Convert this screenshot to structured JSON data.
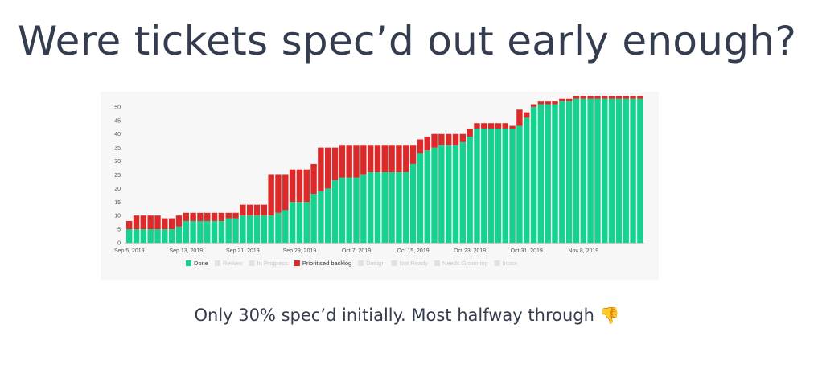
{
  "slide": {
    "title": "Were tickets spec’d out early enough?",
    "caption": "Only 30% spec’d initially. Most halfway through",
    "caption_emoji": "👎"
  },
  "colors": {
    "done": "#17d18e",
    "prioritised_backlog": "#dc2a2a",
    "faded_legend": "#c8c8c8",
    "axis_text": "#555555",
    "panel": "#f7f7f7"
  },
  "chart_data": {
    "type": "bar",
    "stacked": true,
    "title": "",
    "xlabel": "",
    "ylabel": "",
    "ylim": [
      0,
      55
    ],
    "y_ticks": [
      0,
      5,
      10,
      15,
      20,
      25,
      30,
      35,
      40,
      45,
      50
    ],
    "x_tick_labels": [
      {
        "index": 0,
        "label": "Sep 5, 2019"
      },
      {
        "index": 8,
        "label": "Sep 13, 2019"
      },
      {
        "index": 16,
        "label": "Sep 21, 2019"
      },
      {
        "index": 24,
        "label": "Sep 29, 2019"
      },
      {
        "index": 32,
        "label": "Oct 7, 2019"
      },
      {
        "index": 40,
        "label": "Oct 15, 2019"
      },
      {
        "index": 48,
        "label": "Oct 23, 2019"
      },
      {
        "index": 56,
        "label": "Oct 31, 2019"
      },
      {
        "index": 64,
        "label": "Nov 8, 2019"
      }
    ],
    "grid": false,
    "legend_position": "bottom",
    "legend": [
      {
        "name": "Done",
        "active": true
      },
      {
        "name": "Review",
        "active": false
      },
      {
        "name": "In Progress",
        "active": false
      },
      {
        "name": "Prioritised backlog",
        "active": true
      },
      {
        "name": "Design",
        "active": false
      },
      {
        "name": "Not Ready",
        "active": false
      },
      {
        "name": "Needs Grooming",
        "active": false
      },
      {
        "name": "Inbox",
        "active": false
      }
    ],
    "series": [
      {
        "name": "Done",
        "values": [
          5,
          5,
          5,
          5,
          5,
          5,
          5,
          6,
          8,
          8,
          8,
          8,
          8,
          8,
          9,
          9,
          10,
          10,
          10,
          10,
          10,
          11,
          12,
          15,
          15,
          15,
          18,
          19,
          20,
          23,
          24,
          24,
          24,
          25,
          26,
          26,
          26,
          26,
          26,
          26,
          29,
          33,
          34,
          35,
          36,
          36,
          36,
          37,
          39,
          42,
          42,
          42,
          42,
          42,
          42,
          43,
          46,
          50,
          51,
          51,
          51,
          52,
          52,
          53,
          53,
          53,
          53,
          53,
          53,
          53,
          53,
          53,
          53
        ]
      },
      {
        "name": "Prioritised backlog",
        "values": [
          3,
          5,
          5,
          5,
          5,
          4,
          4,
          4,
          3,
          3,
          3,
          3,
          3,
          3,
          2,
          2,
          4,
          4,
          4,
          4,
          15,
          14,
          13,
          12,
          12,
          12,
          11,
          16,
          15,
          12,
          12,
          12,
          12,
          11,
          10,
          10,
          10,
          10,
          10,
          10,
          7,
          5,
          5,
          5,
          4,
          4,
          4,
          3,
          3,
          2,
          2,
          2,
          2,
          2,
          1,
          6,
          2,
          1,
          1,
          1,
          1,
          1,
          1,
          1,
          1,
          1,
          1,
          1,
          1,
          1,
          1,
          1,
          1
        ]
      }
    ]
  }
}
